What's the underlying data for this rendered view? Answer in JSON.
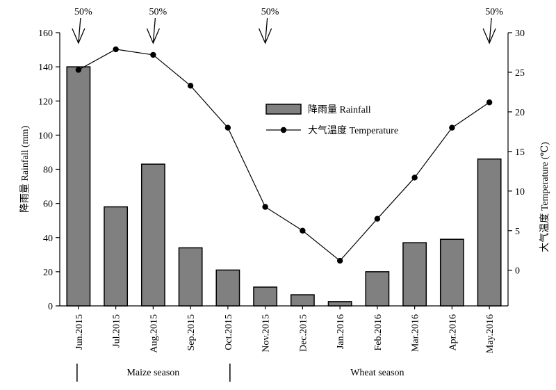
{
  "chart_data": {
    "type": "bar",
    "categories": [
      "Jun.2015",
      "Jul.2015",
      "Aug.2015",
      "Sep.2015",
      "Oct.2015",
      "Nov.2015",
      "Dec.2015",
      "Jan.2016",
      "Feb.2016",
      "Mar.2016",
      "Apr.2016",
      "May.2016"
    ],
    "series": [
      {
        "name": "降雨量 Rainfall",
        "type": "bar",
        "axis": "left",
        "values": [
          140,
          58,
          83,
          34,
          21,
          11,
          6.5,
          2.5,
          20,
          37,
          39,
          86
        ],
        "color": "#808080"
      },
      {
        "name": "大气温度 Temperature",
        "type": "line",
        "axis": "right",
        "values": [
          25.3,
          27.9,
          27.2,
          23.3,
          18.0,
          8.0,
          5.0,
          1.2,
          6.5,
          11.7,
          18.0,
          21.2
        ],
        "color": "#000000"
      }
    ],
    "ylabel_left": "降雨量 Rainfall (mm)",
    "ylabel_right": "大气温度 Temperature (℃)",
    "ylim_left": [
      0,
      160
    ],
    "ylim_right": [
      -4.5,
      30
    ],
    "yticks_left": [
      "0",
      "20",
      "40",
      "60",
      "80",
      "100",
      "120",
      "140",
      "160"
    ],
    "yticks_right": [
      "0",
      "5",
      "10",
      "15",
      "20",
      "25",
      "30"
    ],
    "legend_position": "center-right",
    "annotations": [
      {
        "label": "50%",
        "category": "Jun.2015"
      },
      {
        "label": "50%",
        "category": "Aug.2015"
      },
      {
        "label": "50%",
        "category": "Nov.2015"
      },
      {
        "label": "50%",
        "category": "May.2016"
      }
    ],
    "seasons": [
      {
        "label": "Maize season",
        "start": "Jun.2015",
        "end": "Oct.2015"
      },
      {
        "label": "Wheat season",
        "start": "Nov.2015",
        "end": "May.2016"
      }
    ],
    "grid": false
  }
}
